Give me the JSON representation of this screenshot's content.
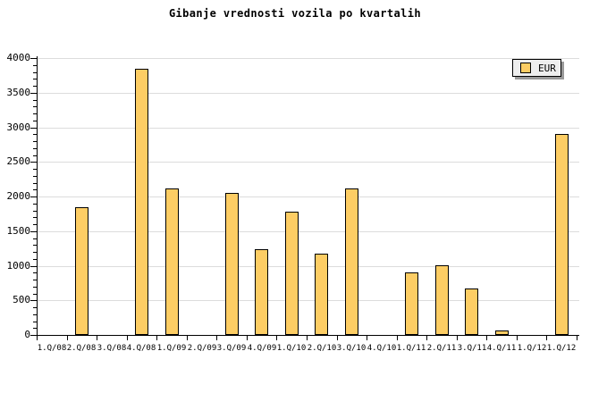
{
  "title": "Gibanje vrednosti vozila po kvartalih",
  "legend": {
    "label": "EUR"
  },
  "colors": {
    "background": "#ffffff",
    "bar_fill": "#fdcd64",
    "bar_border": "#000000",
    "gridline": "#dcdcdc",
    "axis": "#000000",
    "text": "#000000",
    "legend_bg": "#eeeeee",
    "legend_shadow": "#999999"
  },
  "chart_data": {
    "type": "bar",
    "title": "Gibanje vrednosti vozila po kvartalih",
    "xlabel": "",
    "ylabel": "",
    "categories": [
      "1.Q/08",
      "2.Q/08",
      "3.Q/08",
      "4.Q/08",
      "1.Q/09",
      "2.Q/09",
      "3.Q/09",
      "4.Q/09",
      "1.Q/10",
      "2.Q/10",
      "3.Q/10",
      "4.Q/10",
      "1.Q/11",
      "2.Q/11",
      "3.Q/11",
      "4.Q/11",
      "1.Q/12",
      "1.Q/12"
    ],
    "series": [
      {
        "name": "EUR",
        "values": [
          null,
          1840,
          null,
          3840,
          2120,
          null,
          2050,
          1240,
          1780,
          1180,
          2120,
          null,
          900,
          1000,
          670,
          60,
          null,
          2900
        ]
      }
    ],
    "ylim": [
      0,
      4000
    ],
    "ytick_step": 500,
    "ytick_minor_step": 100,
    "ytick_labels": [
      "0",
      "500",
      "1000",
      "1500",
      "2000",
      "2500",
      "3000",
      "3500",
      "4000"
    ],
    "grid": "horizontal-major",
    "legend_entries": [
      "EUR"
    ],
    "legend_position": "top-right"
  }
}
